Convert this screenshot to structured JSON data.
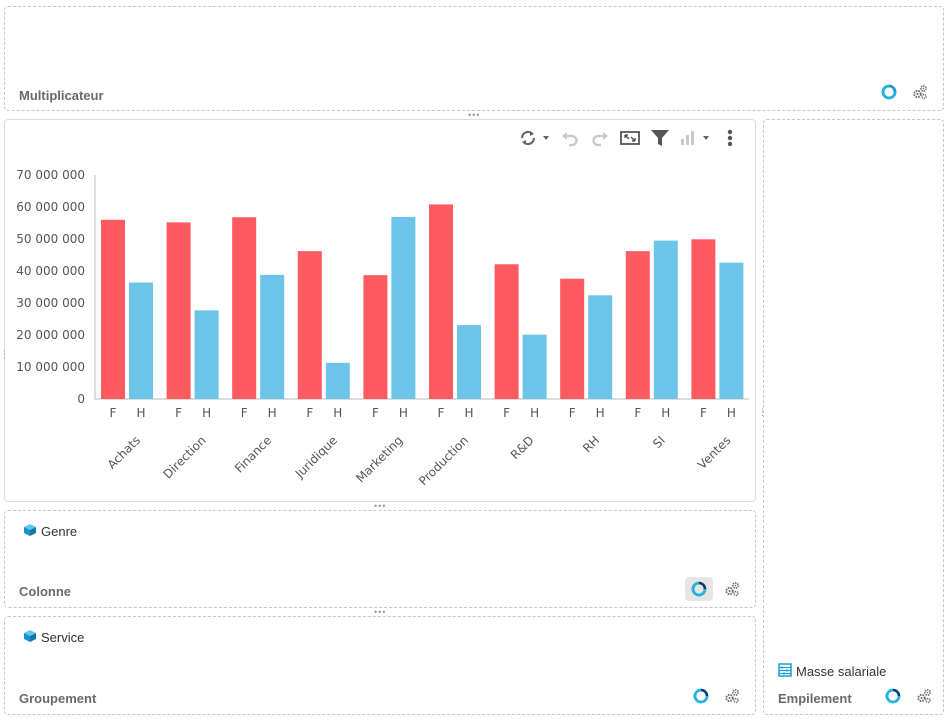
{
  "multiplicateur": {
    "title": "Multiplicateur"
  },
  "colonne": {
    "title": "Colonne",
    "field": "Genre"
  },
  "groupement": {
    "title": "Groupement",
    "field": "Service"
  },
  "empilement": {
    "title": "Empilement",
    "field": "Masse salariale"
  },
  "colors": {
    "accent": "#1a9fd0",
    "series_f": "#ff5a5f",
    "series_h": "#6cc4e8"
  },
  "toolbar": {
    "icons": [
      "refresh-icon",
      "undo-icon",
      "redo-icon",
      "fullscreen-icon",
      "filter-icon",
      "chart-type-icon",
      "more-icon"
    ]
  },
  "chart_data": {
    "type": "bar",
    "groups": [
      "Achats",
      "Direction",
      "Finance",
      "Juridique",
      "Marketing",
      "Production",
      "R&D",
      "RH",
      "SI",
      "Ventes"
    ],
    "sub_categories": [
      "F",
      "H"
    ],
    "series": [
      {
        "name": "F",
        "values": [
          56000000,
          55200000,
          56800000,
          46200000,
          38700000,
          60800000,
          42100000,
          37600000,
          46200000,
          49900000
        ]
      },
      {
        "name": "H",
        "values": [
          36400000,
          27700000,
          38800000,
          11300000,
          56900000,
          23100000,
          20100000,
          32400000,
          49500000,
          42600000
        ]
      }
    ],
    "y_ticks": [
      "0",
      "10 000 000",
      "20 000 000",
      "30 000 000",
      "40 000 000",
      "50 000 000",
      "60 000 000",
      "70 000 000"
    ],
    "ylim": [
      0,
      70000000
    ],
    "grid": false,
    "title": "",
    "xlabel": "",
    "ylabel": ""
  }
}
